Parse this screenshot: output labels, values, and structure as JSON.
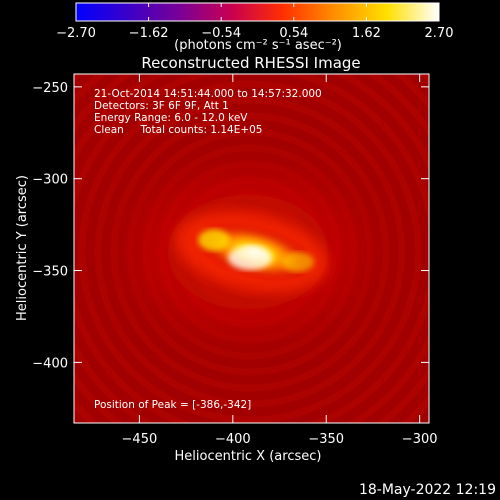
{
  "chart_data": {
    "type": "heatmap",
    "title": "Reconstructed RHESSI Image",
    "xlabel": "Heliocentric X (arcsec)",
    "ylabel": "Heliocentric Y (arcsec)",
    "xlim": [
      -485,
      -295
    ],
    "ylim": [
      -433,
      -243
    ],
    "x_ticks": [
      -450,
      -400,
      -350,
      -300
    ],
    "x_tick_labels": [
      "−450",
      "−400",
      "−350",
      "−300"
    ],
    "y_ticks": [
      -250,
      -300,
      -350,
      -400
    ],
    "y_tick_labels": [
      "−250",
      "−300",
      "−350",
      "−400"
    ],
    "colorbar": {
      "min": -2.7,
      "max": 2.7,
      "ticks": [
        -2.7,
        -1.62,
        -0.54,
        0.54,
        1.62,
        2.7
      ],
      "tick_labels": [
        "−2.70",
        "−1.62",
        "−0.54",
        "0.54",
        "1.62",
        "2.70"
      ],
      "units_label": "(photons cm⁻² s⁻¹ asec⁻²)",
      "colormap": [
        "#0000ff",
        "#3a00c8",
        "#7a0096",
        "#c80050",
        "#ff3000",
        "#ff9000",
        "#ffe000",
        "#ffffff"
      ]
    },
    "annotations": [
      "21-Oct-2014 14:51:44.000 to 14:57:32.000",
      "Detectors: 3F 6F 9F, Att 1",
      "Energy Range: 6.0 - 12.0 keV",
      "Clean     Total counts: 1.14E+05",
      "Position of Peak = [-386,-342]"
    ],
    "peak_position": [
      -386,
      -342
    ],
    "background_color": "#a20000"
  },
  "footer": {
    "timestamp": "18-May-2022 12:19"
  }
}
